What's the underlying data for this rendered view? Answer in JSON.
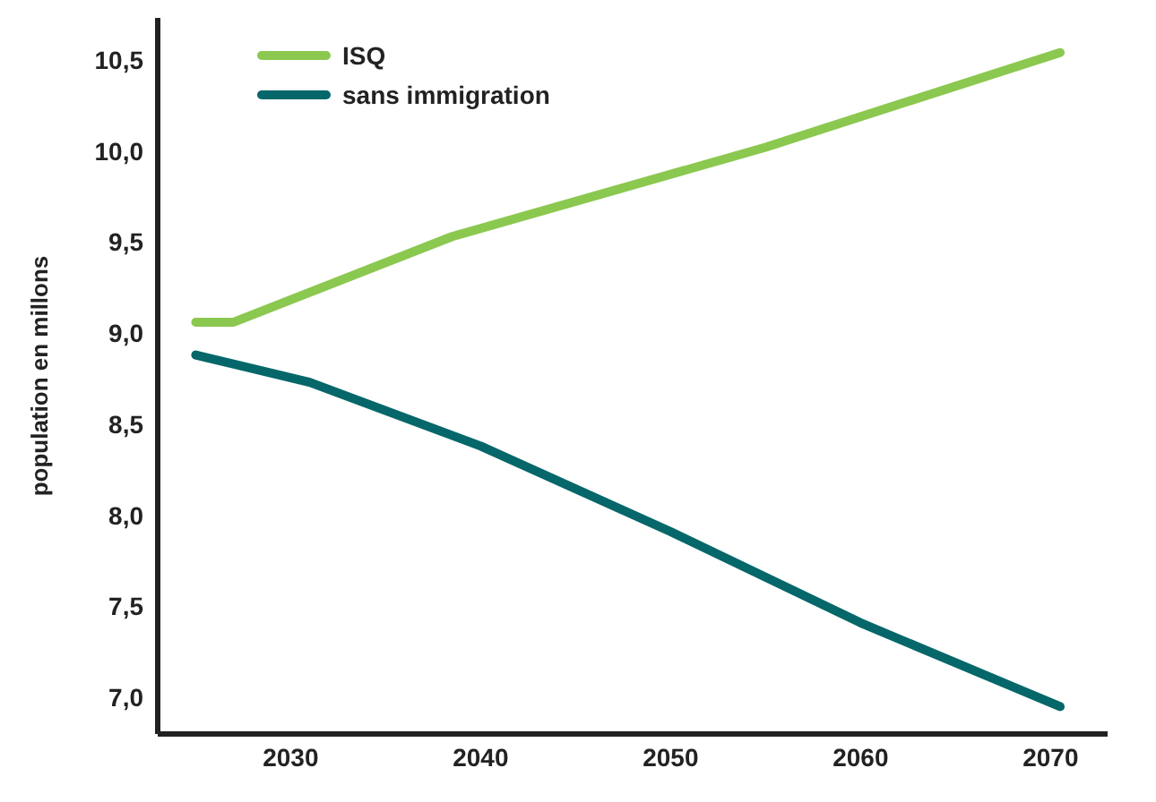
{
  "chart_data": {
    "type": "line",
    "ylabel": "population en millons",
    "xlim": [
      2023,
      2073
    ],
    "xticks": [
      2030,
      2040,
      2050,
      2060,
      2070
    ],
    "ylim": [
      6.8,
      10.73
    ],
    "yticks": [
      {
        "value": 7,
        "label": "7,0"
      },
      {
        "value": 7.5,
        "label": "7,5"
      },
      {
        "value": 8,
        "label": "8,0"
      },
      {
        "value": 8.5,
        "label": "8,5"
      },
      {
        "value": 9,
        "label": "9,0"
      },
      {
        "value": 9.5,
        "label": "9,5"
      },
      {
        "value": 10,
        "label": "10,0"
      },
      {
        "value": 10.5,
        "label": "10,5"
      }
    ],
    "grid": false,
    "legend": "top left",
    "marker": "none",
    "line_style": "solid",
    "series": [
      {
        "name": "ISQ",
        "color": "#8bc84f",
        "x": [
          2025,
          2027,
          2038.5,
          2055,
          2070.5
        ],
        "values": [
          9.06,
          9.06,
          9.53,
          10.02,
          10.54
        ]
      },
      {
        "name": "sans immigration",
        "color": "#05676a",
        "x": [
          2025,
          2031,
          2040,
          2050,
          2060,
          2070.5
        ],
        "values": [
          8.88,
          8.73,
          8.38,
          7.91,
          7.41,
          6.95
        ]
      }
    ]
  }
}
